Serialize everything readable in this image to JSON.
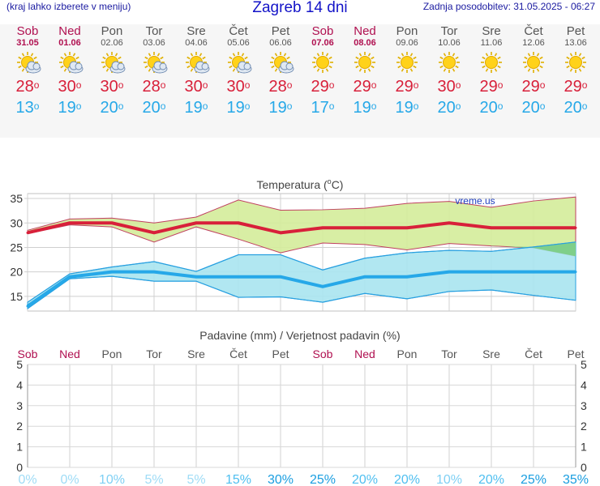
{
  "header": {
    "menu_hint": "(kraj lahko izberete v meniju)",
    "title": "Zagreb 14 dni",
    "updated": "Zadnja posodobitev: 31.05.2025 - 06:27"
  },
  "days": [
    {
      "name": "Sob",
      "date": "31.05",
      "weekend": true,
      "icon": "sun-cloud-icon",
      "tmax": "28",
      "tmin": "13"
    },
    {
      "name": "Ned",
      "date": "01.06",
      "weekend": true,
      "icon": "sun-cloud-icon",
      "tmax": "30",
      "tmin": "19"
    },
    {
      "name": "Pon",
      "date": "02.06",
      "weekend": false,
      "icon": "sun-cloud-icon",
      "tmax": "30",
      "tmin": "20"
    },
    {
      "name": "Tor",
      "date": "03.06",
      "weekend": false,
      "icon": "sun-cloud-icon",
      "tmax": "28",
      "tmin": "20"
    },
    {
      "name": "Sre",
      "date": "04.06",
      "weekend": false,
      "icon": "sun-cloud-icon",
      "tmax": "30",
      "tmin": "19"
    },
    {
      "name": "Čet",
      "date": "05.06",
      "weekend": false,
      "icon": "sun-cloud-icon",
      "tmax": "30",
      "tmin": "19"
    },
    {
      "name": "Pet",
      "date": "06.06",
      "weekend": false,
      "icon": "sun-cloud-icon",
      "tmax": "28",
      "tmin": "19"
    },
    {
      "name": "Sob",
      "date": "07.06",
      "weekend": true,
      "icon": "sun-icon",
      "tmax": "29",
      "tmin": "17"
    },
    {
      "name": "Ned",
      "date": "08.06",
      "weekend": true,
      "icon": "sun-icon",
      "tmax": "29",
      "tmin": "19"
    },
    {
      "name": "Pon",
      "date": "09.06",
      "weekend": false,
      "icon": "sun-icon",
      "tmax": "29",
      "tmin": "19"
    },
    {
      "name": "Tor",
      "date": "10.06",
      "weekend": false,
      "icon": "sun-icon",
      "tmax": "30",
      "tmin": "20"
    },
    {
      "name": "Sre",
      "date": "11.06",
      "weekend": false,
      "icon": "sun-icon",
      "tmax": "29",
      "tmin": "20"
    },
    {
      "name": "Čet",
      "date": "12.06",
      "weekend": false,
      "icon": "sun-icon",
      "tmax": "29",
      "tmin": "20"
    },
    {
      "name": "Pet",
      "date": "13.06",
      "weekend": false,
      "icon": "sun-icon",
      "tmax": "29",
      "tmin": "20"
    }
  ],
  "degree_symbol": "o",
  "colors": {
    "weekend": "#b01050",
    "max": "#d8203a",
    "min": "#26a8e8",
    "max_band": "#d4ec9a",
    "min_band": "#a8e4f0",
    "overlap": "#7fcf8a"
  },
  "chart_data": [
    {
      "type": "area",
      "title": "Temperatura (",
      "title_sup": "o",
      "title_end": "C)",
      "watermark": "vreme.us",
      "ylim": [
        12,
        36
      ],
      "yticks": [
        "15",
        "20",
        "25",
        "30",
        "35"
      ],
      "x": [
        "Sob",
        "Ned",
        "Pon",
        "Tor",
        "Sre",
        "Čet",
        "Pet",
        "Sob",
        "Ned",
        "Pon",
        "Tor",
        "Sre",
        "Čet",
        "Pet"
      ],
      "series": [
        {
          "role": "max",
          "values": [
            28,
            30,
            30,
            28,
            30,
            30,
            28,
            29,
            29,
            29,
            30,
            29,
            29,
            29
          ],
          "upper": [
            28.5,
            30.8,
            31,
            30,
            31.2,
            34.7,
            32.6,
            32.7,
            33,
            34,
            34.4,
            33.2,
            34.5,
            35.3
          ],
          "lower": [
            27.8,
            29.6,
            29.2,
            26.1,
            29.2,
            26.7,
            23.9,
            25.9,
            25.6,
            24.5,
            25.8,
            25.3,
            24.9,
            23.2
          ]
        },
        {
          "role": "min",
          "values": [
            13,
            19,
            20,
            20,
            19,
            19,
            19,
            17,
            19,
            19,
            20,
            20,
            20,
            20
          ],
          "upper": [
            13.8,
            19.6,
            21,
            22.1,
            20.1,
            23.5,
            23.5,
            20.4,
            22.8,
            23.9,
            24.4,
            24.2,
            25.1,
            26.1
          ],
          "lower": [
            12.5,
            18.6,
            19.1,
            18.1,
            18.1,
            14.8,
            14.9,
            13.8,
            15.6,
            14.5,
            16,
            16.3,
            15.2,
            14.2
          ]
        }
      ],
      "grid": true
    },
    {
      "type": "bar",
      "title": "Padavine (mm) / Verjetnost padavin (%)",
      "ylim": [
        0,
        5
      ],
      "yticks": [
        "0",
        "1",
        "2",
        "3",
        "4",
        "5"
      ],
      "categories": [
        "Sob",
        "Ned",
        "Pon",
        "Tor",
        "Sre",
        "Čet",
        "Pet",
        "Sob",
        "Ned",
        "Pon",
        "Tor",
        "Sre",
        "Čet",
        "Pet"
      ],
      "values": [
        0,
        0,
        0,
        0,
        0,
        0,
        0,
        0,
        0,
        0,
        0,
        0,
        0,
        0
      ],
      "probability": [
        "0%",
        "0%",
        "10%",
        "5%",
        "5%",
        "15%",
        "30%",
        "25%",
        "20%",
        "20%",
        "10%",
        "20%",
        "25%",
        "35%"
      ],
      "grid": true
    }
  ]
}
